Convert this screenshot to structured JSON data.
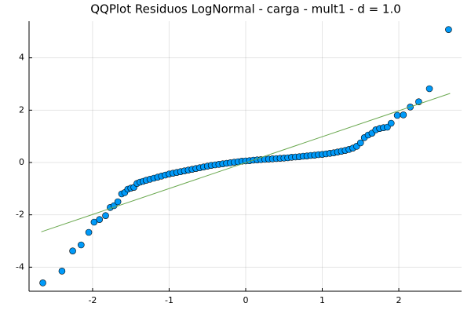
{
  "chart_data": {
    "type": "scatter",
    "title": "QQPlot Residuos LogNormal - carga - mult1 - d = 1.0",
    "xlim": [
      -2.83,
      2.82
    ],
    "ylim": [
      -4.92,
      5.4
    ],
    "xticks": [
      -2,
      -1,
      0,
      1,
      2
    ],
    "yticks": [
      -4,
      -2,
      0,
      2,
      4
    ],
    "grid": true,
    "series": [
      {
        "type": "scatter",
        "color": "#009af9",
        "x": [
          -2.65,
          -2.4,
          -2.26,
          -2.15,
          -2.05,
          -1.98,
          -1.91,
          -1.83,
          -1.77,
          -1.72,
          -1.67,
          -1.62,
          -1.58,
          -1.54,
          -1.5,
          -1.46,
          -1.42,
          -1.38,
          -1.34,
          -1.3,
          -1.25,
          -1.2,
          -1.15,
          -1.1,
          -1.05,
          -1.0,
          -0.95,
          -0.9,
          -0.85,
          -0.8,
          -0.75,
          -0.7,
          -0.65,
          -0.6,
          -0.55,
          -0.5,
          -0.45,
          -0.4,
          -0.35,
          -0.3,
          -0.25,
          -0.2,
          -0.15,
          -0.1,
          -0.05,
          0,
          0.05,
          0.1,
          0.15,
          0.2,
          0.25,
          0.3,
          0.35,
          0.4,
          0.45,
          0.5,
          0.55,
          0.6,
          0.65,
          0.7,
          0.75,
          0.8,
          0.85,
          0.9,
          0.95,
          1.0,
          1.05,
          1.1,
          1.15,
          1.2,
          1.25,
          1.3,
          1.35,
          1.4,
          1.45,
          1.5,
          1.55,
          1.6,
          1.65,
          1.7,
          1.75,
          1.8,
          1.85,
          1.9,
          1.98,
          2.06,
          2.15,
          2.26,
          2.4,
          2.65
        ],
        "values": [
          -4.6,
          -4.15,
          -3.38,
          -3.15,
          -2.67,
          -2.28,
          -2.18,
          -2.03,
          -1.72,
          -1.65,
          -1.5,
          -1.2,
          -1.15,
          -1.02,
          -0.98,
          -0.95,
          -0.8,
          -0.75,
          -0.72,
          -0.68,
          -0.64,
          -0.6,
          -0.56,
          -0.52,
          -0.48,
          -0.44,
          -0.41,
          -0.38,
          -0.35,
          -0.32,
          -0.29,
          -0.26,
          -0.23,
          -0.2,
          -0.17,
          -0.14,
          -0.11,
          -0.09,
          -0.07,
          -0.05,
          -0.03,
          -0.01,
          0.01,
          0.03,
          0.05,
          0.06,
          0.07,
          0.09,
          0.1,
          0.11,
          0.12,
          0.13,
          0.14,
          0.15,
          0.16,
          0.17,
          0.18,
          0.2,
          0.21,
          0.22,
          0.24,
          0.25,
          0.27,
          0.28,
          0.3,
          0.31,
          0.33,
          0.35,
          0.37,
          0.4,
          0.43,
          0.46,
          0.5,
          0.55,
          0.62,
          0.75,
          0.95,
          1.05,
          1.12,
          1.25,
          1.3,
          1.33,
          1.35,
          1.5,
          1.8,
          1.82,
          2.12,
          2.32,
          2.82,
          5.08
        ]
      },
      {
        "type": "line",
        "color": "#6aa84f",
        "x": [
          -2.67,
          2.67
        ],
        "values": [
          -2.65,
          2.64
        ]
      }
    ]
  }
}
